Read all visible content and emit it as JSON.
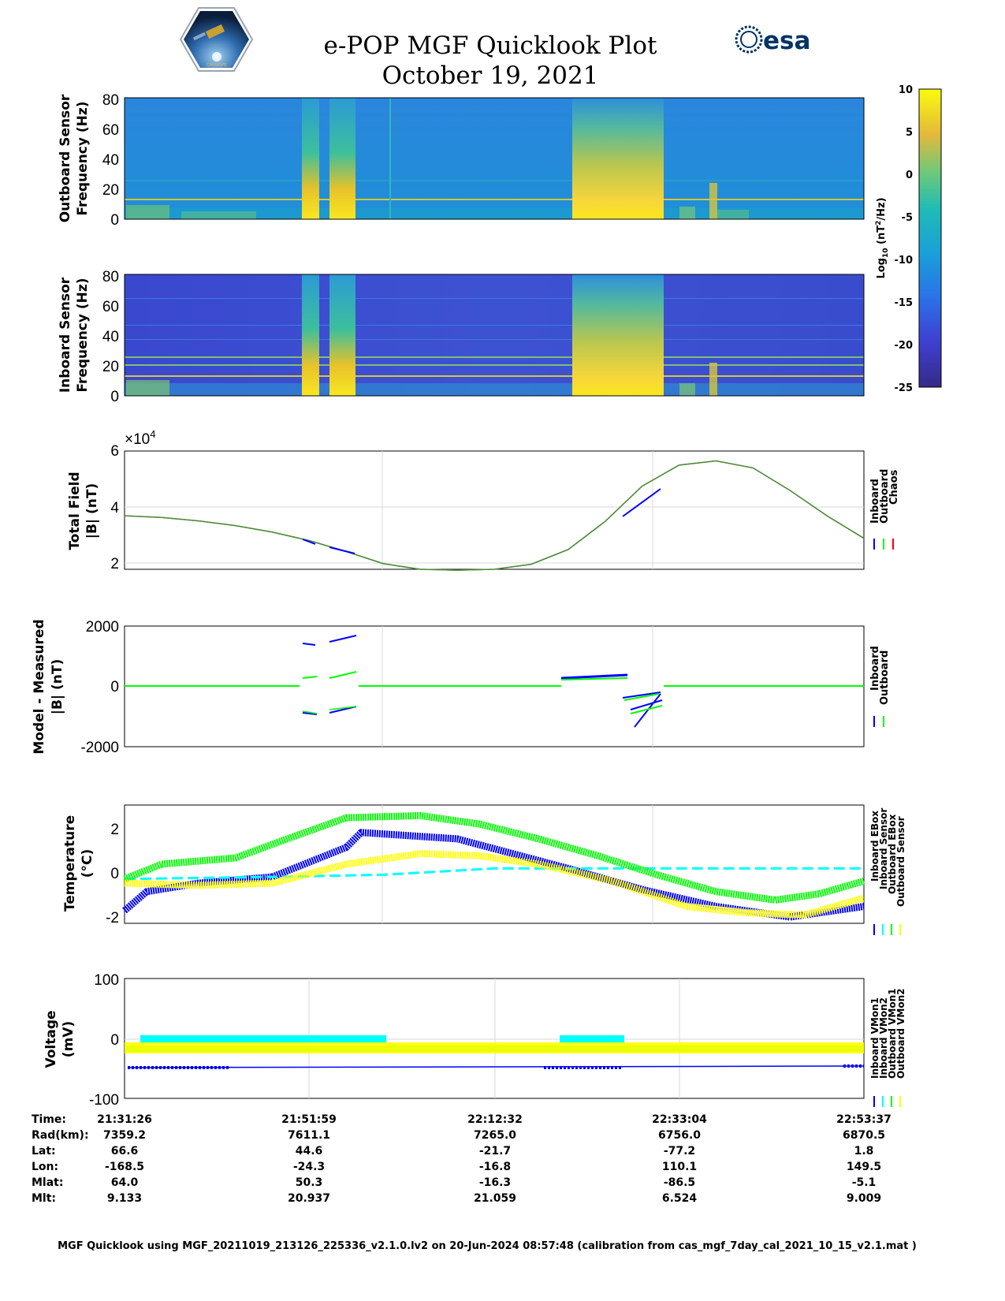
{
  "title": {
    "line1": "e-POP MGF Quicklook Plot",
    "line2": "October 19, 2021",
    "logo_left": "CASSIOPE",
    "logo_right": "esa"
  },
  "colors": {
    "inboard": "#0000ff",
    "outboard": "#00ff00",
    "chaos": "#ff0000",
    "cyan": "#00ffff",
    "yellow": "#ffff00",
    "spec_low": "#3b4cc0",
    "spec_mid": "#1e9bd7",
    "spec_high": "#f9e721"
  },
  "chart_data": [
    {
      "id": "outboard-spectrogram",
      "type": "heatmap",
      "ylabel_line1": "Outboard Sensor",
      "ylabel_line2": "Frequency (Hz)",
      "ylim": [
        0,
        80
      ],
      "yticks": [
        "80",
        "60",
        "40",
        "20",
        "0"
      ],
      "notes": "broadband bursts near 21:51:59-21:55 and 22:24-22:30; persistent line near 12 Hz"
    },
    {
      "id": "inboard-spectrogram",
      "type": "heatmap",
      "ylabel_line1": "Inboard Sensor",
      "ylabel_line2": "Frequency (Hz)",
      "ylim": [
        0,
        80
      ],
      "yticks": [
        "80",
        "60",
        "40",
        "20",
        "0"
      ]
    },
    {
      "id": "colorbar",
      "type": "heatmap",
      "label": "Log10 (nT2/Hz)",
      "label_main": "Log",
      "label_sub": "10",
      "label_unit_a": " (nT",
      "label_sup": "2",
      "label_unit_b": "/Hz)",
      "range": [
        -25,
        10
      ],
      "ticks": [
        "10",
        "5",
        "0",
        "-5",
        "-10",
        "-15",
        "-20",
        "-25"
      ]
    },
    {
      "id": "total-field",
      "type": "line",
      "ylabel_line1": "Total Field",
      "ylabel_line2": "|B| (nT)",
      "exponent_base": "×10",
      "exponent_power": "4",
      "ylim": [
        1.8,
        6
      ],
      "yticks": [
        "6",
        "4",
        "2"
      ],
      "ytick_values": [
        6,
        4,
        2
      ],
      "legend": [
        "Inboard",
        "Outboard",
        "Chaos"
      ],
      "x_fraction": [
        0,
        0.05,
        0.1,
        0.15,
        0.2,
        0.25,
        0.3,
        0.35,
        0.4,
        0.45,
        0.5,
        0.55,
        0.6,
        0.65,
        0.7,
        0.75,
        0.8,
        0.85,
        0.9,
        0.95,
        1
      ],
      "values": [
        3.7,
        3.64,
        3.52,
        3.35,
        3.12,
        2.82,
        2.43,
        2.0,
        1.8,
        1.77,
        1.8,
        1.98,
        2.5,
        3.5,
        4.75,
        5.5,
        5.65,
        5.4,
        4.6,
        3.7,
        2.9
      ]
    },
    {
      "id": "model-measured",
      "type": "line",
      "ylabel_line1": "Model - Measured",
      "ylabel_line2": "|B| (nT)",
      "ylim": [
        -2000,
        2000
      ],
      "yticks": [
        "2000",
        "0",
        "-2000"
      ],
      "ytick_values": [
        2000,
        0,
        -2000
      ],
      "legend": [
        "Inboard",
        "Outboard"
      ]
    },
    {
      "id": "temperature",
      "type": "line",
      "ylabel_line1": "Temperature",
      "ylabel_line2": "(°C)",
      "ylim": [
        -2.4,
        3.2
      ],
      "yticks": [
        "2",
        "0",
        "-2"
      ],
      "ytick_values": [
        2,
        0,
        -2
      ],
      "legend": [
        "Inboard EBox",
        "Inboard Sensor",
        "Outboard EBox",
        "Outboard Sensor"
      ],
      "series": [
        {
          "name": "Inboard EBox",
          "color": "#0000ff",
          "x_fraction": [
            0,
            0.03,
            0.1,
            0.2,
            0.3,
            0.32,
            0.45,
            0.6,
            0.7,
            0.8,
            0.9,
            1
          ],
          "values": [
            -1.8,
            -0.9,
            -0.5,
            -0.2,
            1.2,
            1.9,
            1.6,
            0.2,
            -0.8,
            -1.6,
            -2.1,
            -1.6
          ]
        },
        {
          "name": "Inboard Sensor",
          "color": "#00ffff",
          "x_fraction": [
            0,
            0.2,
            0.35,
            0.5,
            0.7,
            1
          ],
          "values": [
            -0.3,
            -0.2,
            -0.1,
            0.2,
            0.2,
            0.2
          ]
        },
        {
          "name": "Outboard EBox",
          "color": "#00ff00",
          "x_fraction": [
            0,
            0.05,
            0.15,
            0.22,
            0.3,
            0.4,
            0.48,
            0.56,
            0.64,
            0.72,
            0.8,
            0.88,
            0.94,
            1
          ],
          "values": [
            -0.3,
            0.4,
            0.7,
            1.6,
            2.6,
            2.7,
            2.3,
            1.6,
            0.8,
            -0.1,
            -0.9,
            -1.3,
            -1.0,
            -0.4
          ]
        },
        {
          "name": "Outboard Sensor",
          "color": "#ffff00",
          "x_fraction": [
            0,
            0.1,
            0.2,
            0.3,
            0.4,
            0.48,
            0.56,
            0.66,
            0.76,
            0.84,
            0.92,
            1
          ],
          "values": [
            -0.5,
            -0.6,
            -0.5,
            0.4,
            0.9,
            0.8,
            0.4,
            -0.4,
            -1.6,
            -1.9,
            -2.0,
            -1.2
          ]
        }
      ]
    },
    {
      "id": "voltage",
      "type": "line",
      "ylabel_line1": "Voltage",
      "ylabel_line2": "(mV)",
      "ylim": [
        -100,
        100
      ],
      "yticks": [
        "100",
        "0",
        "-100"
      ],
      "ytick_values": [
        100,
        0,
        -100
      ],
      "legend": [
        "Inboard VMon1",
        "Inboard VMon2",
        "Outboard VMon1",
        "Outboard VMon2"
      ],
      "series": [
        {
          "name": "Inboard VMon1",
          "color": "#0000ff",
          "values": [
            -48,
            -48
          ]
        },
        {
          "name": "Inboard VMon2",
          "color": "#00ffff",
          "values": [
            0,
            -5
          ]
        },
        {
          "name": "Outboard VMon1",
          "color": "#00ff00",
          "values": [
            -20,
            -20
          ]
        },
        {
          "name": "Outboard VMon2",
          "color": "#ffff00",
          "values": [
            -15,
            -15
          ]
        }
      ]
    }
  ],
  "axis_table": {
    "labels": [
      "Time:",
      "Rad(km):",
      "Lat:",
      "Lon:",
      "Mlat:",
      "Mlt:"
    ],
    "columns": [
      [
        "21:31:26",
        "7359.2",
        "66.6",
        "-168.5",
        "64.0",
        "9.133"
      ],
      [
        "21:51:59",
        "7611.1",
        "44.6",
        "-24.3",
        "50.3",
        "20.937"
      ],
      [
        "22:12:32",
        "7265.0",
        "-21.7",
        "-16.8",
        "-16.3",
        "21.059"
      ],
      [
        "22:33:04",
        "6756.0",
        "-77.2",
        "110.1",
        "-86.5",
        "6.524"
      ],
      [
        "22:53:37",
        "6870.5",
        "1.8",
        "149.5",
        "-5.1",
        "9.009"
      ]
    ]
  },
  "footer": "MGF Quicklook using MGF_20211019_213126_225336_v2.1.0.lv2 on 20-Jun-2024 08:57:48 (calibration from cas_mgf_7day_cal_2021_10_15_v2.1.mat )"
}
